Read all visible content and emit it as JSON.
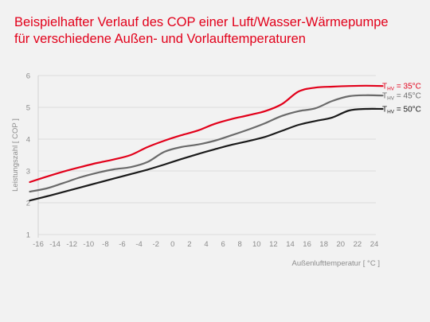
{
  "title": {
    "line1": "Beispielhafter Verlauf des COP einer Luft/Wasser-Wärmepumpe",
    "line2": "für verschiedene Außen- und Vorlauftemperaturen"
  },
  "chart_data": {
    "type": "line",
    "xlabel": "Außenlufttemperatur [ °C ]",
    "ylabel": "Leistungszahl [ COP ]",
    "xlim": [
      -16,
      24
    ],
    "ylim": [
      1,
      6
    ],
    "x_ticks": [
      -16,
      -14,
      -12,
      -10,
      -8,
      -6,
      -4,
      -2,
      0,
      2,
      4,
      6,
      8,
      10,
      12,
      14,
      16,
      18,
      20,
      22,
      24
    ],
    "y_ticks": [
      1,
      2,
      3,
      4,
      5,
      6
    ],
    "grid": true,
    "legend_position": "right",
    "series": [
      {
        "label_main": "T",
        "label_sub": "HV",
        "label_rest": " = 35°C",
        "color": "#e2001a",
        "x": [
          -17,
          -15,
          -13,
          -11,
          -9,
          -7,
          -5,
          -3,
          -1,
          1,
          3,
          5,
          7,
          9,
          11,
          13,
          15,
          17,
          19,
          21,
          23,
          25
        ],
        "y": [
          2.65,
          2.82,
          2.98,
          3.12,
          3.25,
          3.36,
          3.5,
          3.75,
          3.95,
          4.12,
          4.27,
          4.48,
          4.63,
          4.75,
          4.88,
          5.1,
          5.5,
          5.62,
          5.65,
          5.67,
          5.68,
          5.67
        ]
      },
      {
        "label_main": "T",
        "label_sub": "HV",
        "label_rest": " = 45°C",
        "color": "#6a6a6a",
        "x": [
          -17,
          -15,
          -13,
          -11,
          -9,
          -7,
          -5,
          -3,
          -1,
          1,
          3,
          5,
          7,
          9,
          11,
          13,
          15,
          17,
          19,
          21,
          23,
          25
        ],
        "y": [
          2.35,
          2.45,
          2.62,
          2.8,
          2.94,
          3.05,
          3.12,
          3.28,
          3.6,
          3.75,
          3.83,
          3.95,
          4.12,
          4.3,
          4.5,
          4.73,
          4.88,
          4.97,
          5.2,
          5.35,
          5.38,
          5.37
        ]
      },
      {
        "label_main": "T",
        "label_sub": "HV",
        "label_rest": " = 50°C",
        "color": "#1a1a1a",
        "x": [
          -17,
          -15,
          -13,
          -11,
          -9,
          -7,
          -5,
          -3,
          -1,
          1,
          3,
          5,
          7,
          9,
          11,
          13,
          15,
          17,
          19,
          21,
          23,
          25
        ],
        "y": [
          2.07,
          2.2,
          2.34,
          2.48,
          2.62,
          2.76,
          2.9,
          3.04,
          3.2,
          3.37,
          3.53,
          3.68,
          3.82,
          3.94,
          4.07,
          4.26,
          4.45,
          4.57,
          4.68,
          4.9,
          4.95,
          4.95
        ]
      }
    ]
  }
}
